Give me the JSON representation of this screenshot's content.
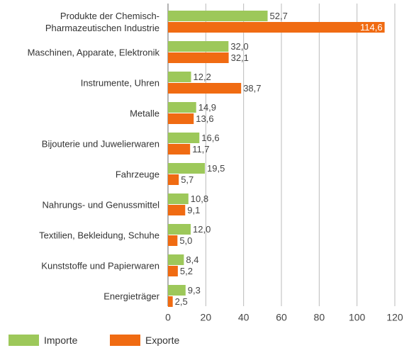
{
  "chart_data": {
    "type": "bar",
    "orientation": "horizontal",
    "categories": [
      "Produkte der Chemisch-\nPharmazeutischen Industrie",
      "Maschinen, Apparate, Elektronik",
      "Instrumente, Uhren",
      "Metalle",
      "Bijouterie und Juwelierwaren",
      "Fahrzeuge",
      "Nahrungs- und Genussmittel",
      "Textilien, Bekleidung, Schuhe",
      "Kunststoffe und Papierwaren",
      "Energieträger"
    ],
    "series": [
      {
        "name": "Importe",
        "color": "#9dc85a",
        "values": [
          52.7,
          32.0,
          12.2,
          14.9,
          16.6,
          19.5,
          10.8,
          12.0,
          8.4,
          9.3
        ],
        "value_labels": [
          "52,7",
          "32,0",
          "12,2",
          "14,9",
          "16,6",
          "19,5",
          "10,8",
          "12,0",
          "8,4",
          "9,3"
        ]
      },
      {
        "name": "Exporte",
        "color": "#f06b12",
        "values": [
          114.6,
          32.1,
          38.7,
          13.6,
          11.7,
          5.7,
          9.1,
          5.0,
          5.2,
          2.5
        ],
        "value_labels": [
          "114,6",
          "32,1",
          "38,7",
          "13,6",
          "11,7",
          "5,7",
          "9,1",
          "5,0",
          "5,2",
          "2,5"
        ]
      }
    ],
    "xlim": [
      0,
      120
    ],
    "xticks": [
      0,
      20,
      40,
      60,
      80,
      100,
      120
    ],
    "grid": true,
    "legend": "bottom-left"
  }
}
